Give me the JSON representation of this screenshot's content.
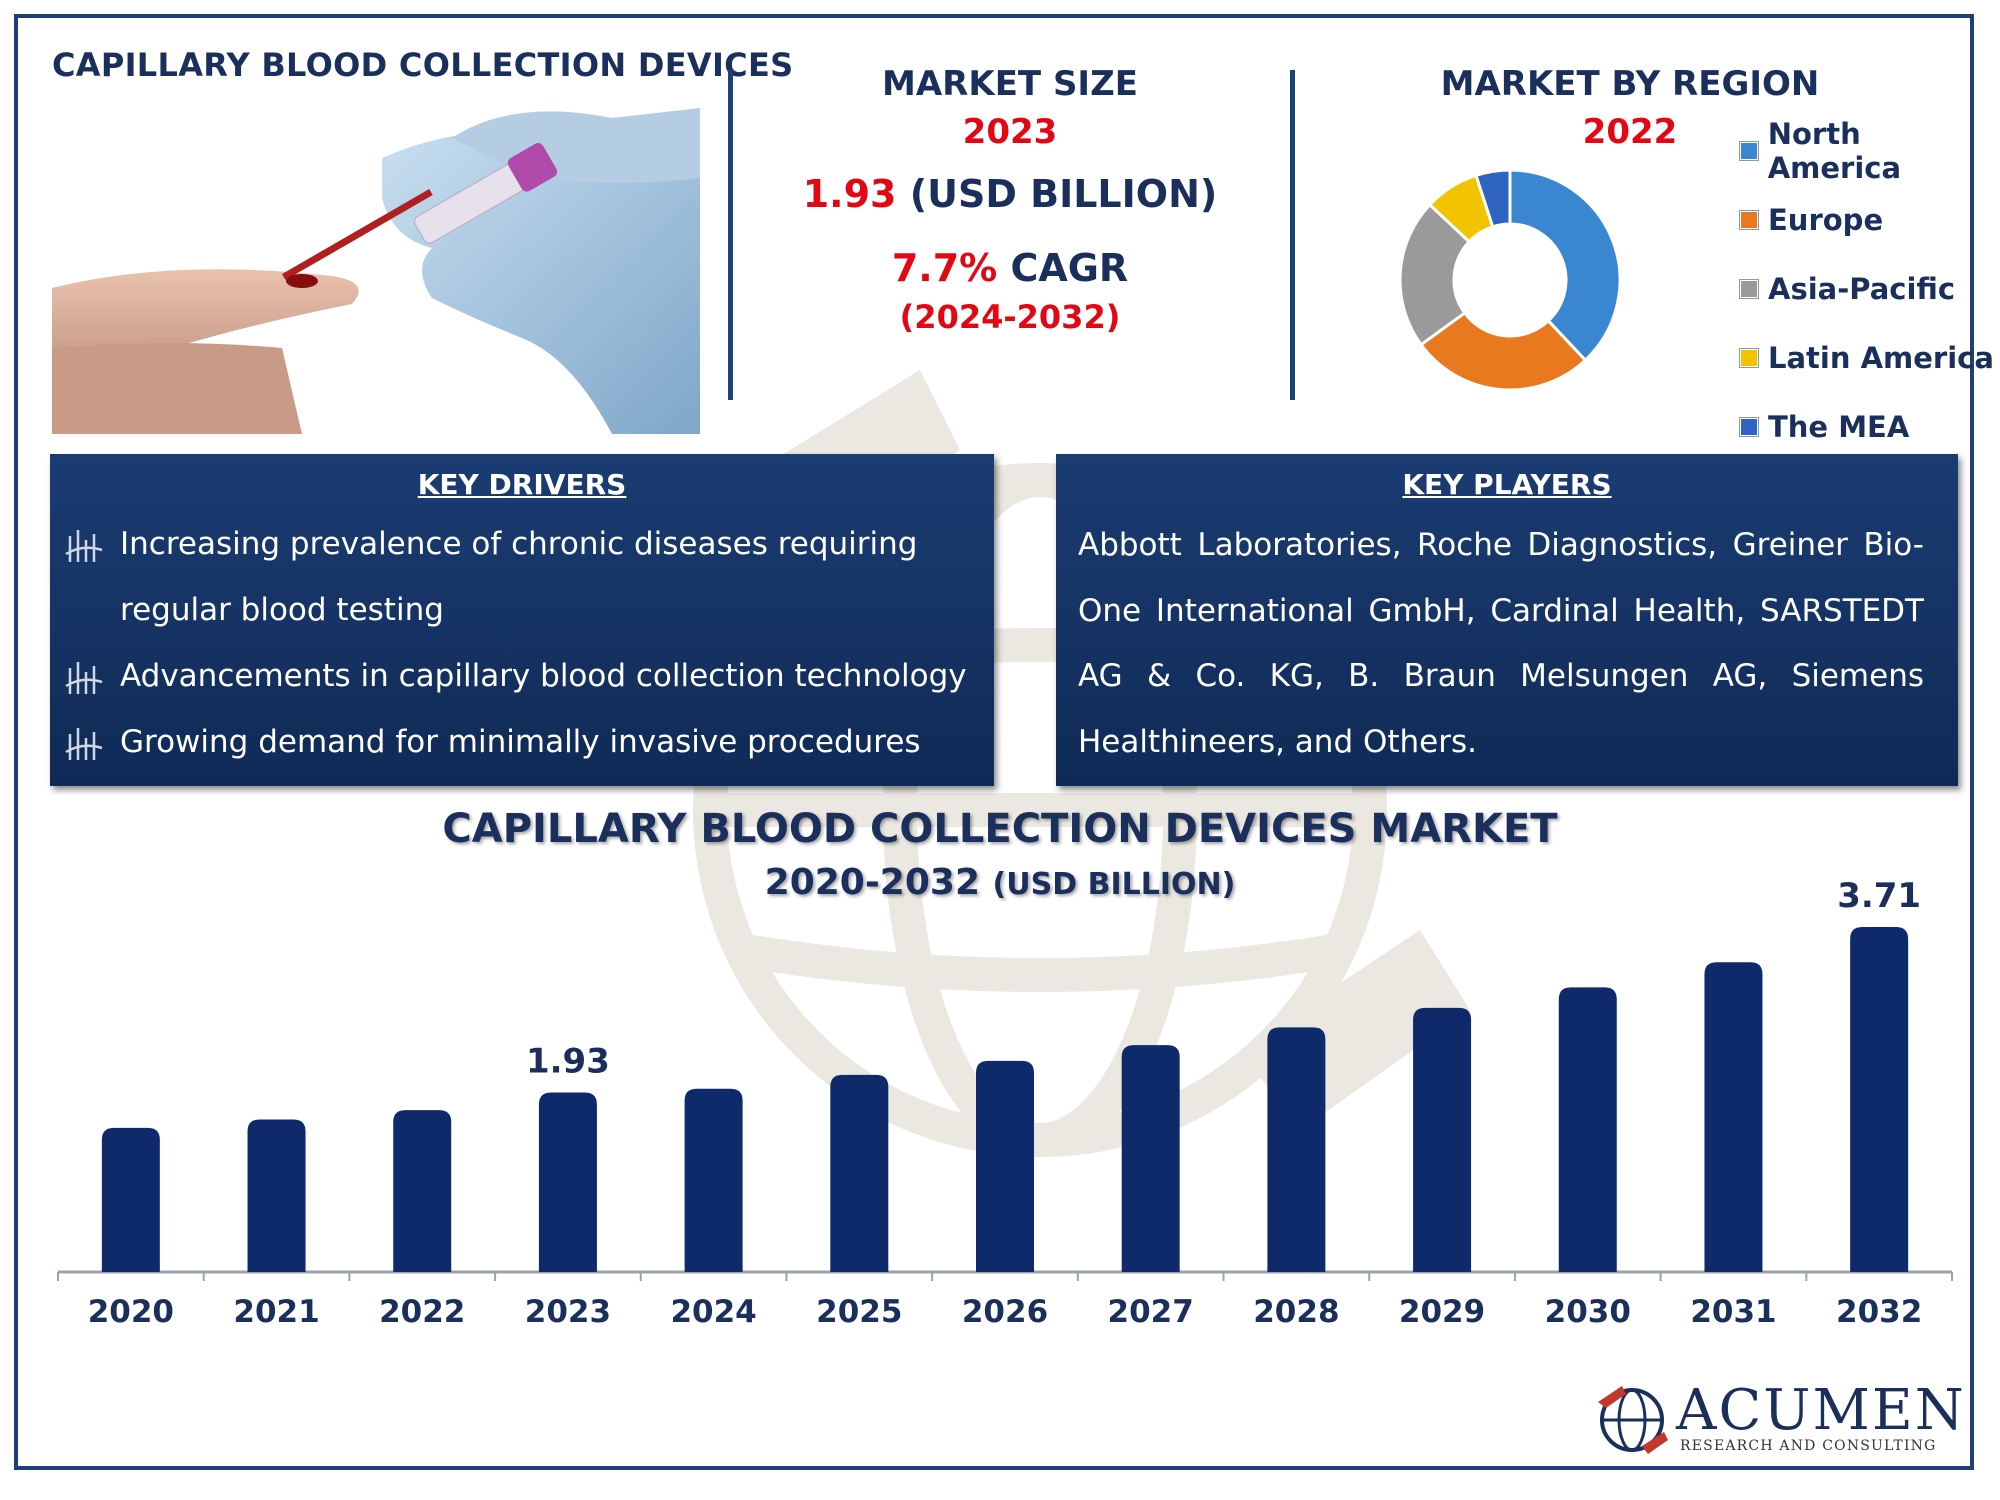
{
  "header": {
    "title": "CAPILLARY BLOOD COLLECTION DEVICES"
  },
  "market_size": {
    "title": "MARKET SIZE",
    "year": "2023",
    "value": "1.93",
    "unit": "(USD BILLION)",
    "cagr_value": "7.7%",
    "cagr_label": "CAGR",
    "cagr_range": "(2024-2032)"
  },
  "market_region": {
    "title": "MARKET BY REGION",
    "year": "2022",
    "segments": [
      {
        "name": "North America",
        "color": "#3a86d0",
        "share": 0.38
      },
      {
        "name": "Europe",
        "color": "#e8791e",
        "share": 0.27
      },
      {
        "name": "Asia-Pacific",
        "color": "#9a9a9a",
        "share": 0.22
      },
      {
        "name": "Latin America",
        "color": "#f2c400",
        "share": 0.08
      },
      {
        "name": "The MEA",
        "color": "#2f64c0",
        "share": 0.05
      }
    ]
  },
  "drivers": {
    "heading": "KEY DRIVERS",
    "items": [
      "Increasing prevalence of chronic diseases requiring regular blood testing",
      "Advancements in capillary blood collection technology",
      "Growing demand for minimally invasive procedures"
    ]
  },
  "players": {
    "heading": "KEY PLAYERS",
    "text": "Abbott Laboratories, Roche Diagnostics, Greiner Bio-One International GmbH, Cardinal Health, SARSTEDT AG & Co. KG, B. Braun Melsungen AG, Siemens Healthineers, and Others."
  },
  "chart_data": {
    "type": "bar",
    "title": "CAPILLARY BLOOD COLLECTION DEVICES MARKET",
    "subtitle_years": "2020-2032",
    "subtitle_unit": "(USD BILLION)",
    "categories": [
      "2020",
      "2021",
      "2022",
      "2023",
      "2024",
      "2025",
      "2026",
      "2027",
      "2028",
      "2029",
      "2030",
      "2031",
      "2032"
    ],
    "values": [
      1.55,
      1.64,
      1.74,
      1.93,
      1.97,
      2.12,
      2.27,
      2.44,
      2.63,
      2.84,
      3.06,
      3.33,
      3.71
    ],
    "labeled": {
      "3": "1.93",
      "12": "3.71"
    },
    "bar_color": "#0f2a6b",
    "ylim": [
      0,
      4
    ],
    "grid": false
  },
  "logo": {
    "name": "ACUMEN",
    "tagline": "RESEARCH AND CONSULTING"
  }
}
